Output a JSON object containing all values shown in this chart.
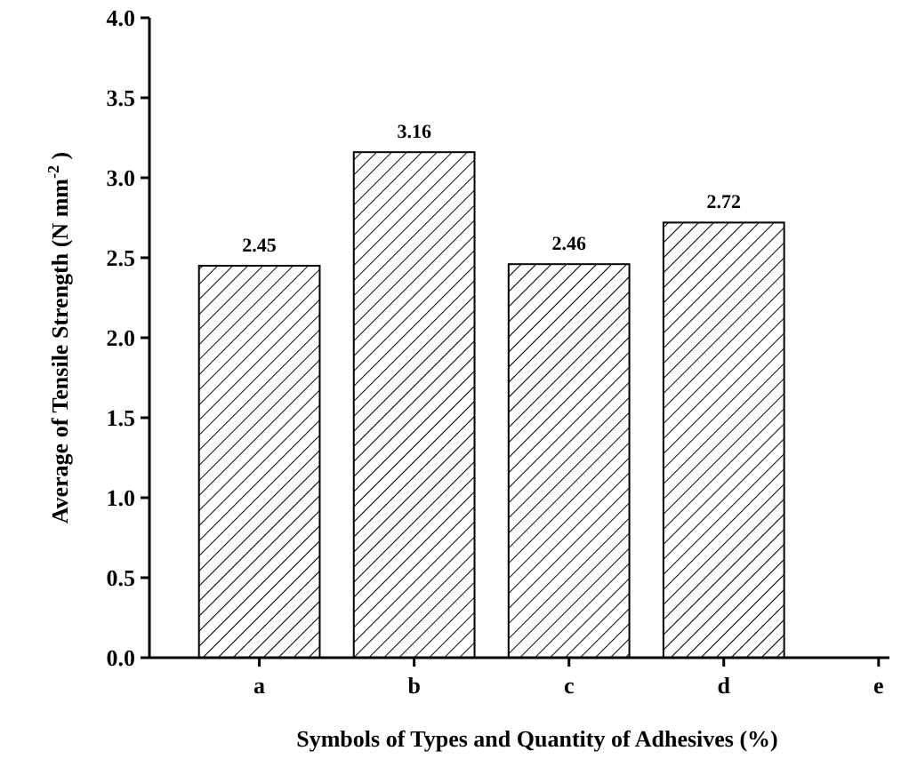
{
  "chart_data": {
    "type": "bar",
    "xlabel": "Symbols of Types and Quantity of Adhesives (%)",
    "ylabel": "Average of Tensile Strength (N mm$^{-2}$ )",
    "categories": [
      "a",
      "b",
      "c",
      "d",
      "e"
    ],
    "values": [
      2.45,
      3.16,
      2.46,
      2.72,
      null
    ],
    "color": "#000000",
    "data_labels": true,
    "ylim": [
      0,
      4
    ],
    "yticks": [
      {
        "value": 0,
        "label": "0.0"
      },
      {
        "value": 0.5,
        "label": "0.5"
      },
      {
        "value": 1,
        "label": "1.0"
      },
      {
        "value": 1.5,
        "label": "1.5"
      },
      {
        "value": 2,
        "label": "2.0"
      },
      {
        "value": 2.5,
        "label": "2.5"
      },
      {
        "value": 3,
        "label": "3.0"
      },
      {
        "value": 3.5,
        "label": "3.5"
      },
      {
        "value": 4,
        "label": "4.0"
      }
    ],
    "grid": false
  }
}
